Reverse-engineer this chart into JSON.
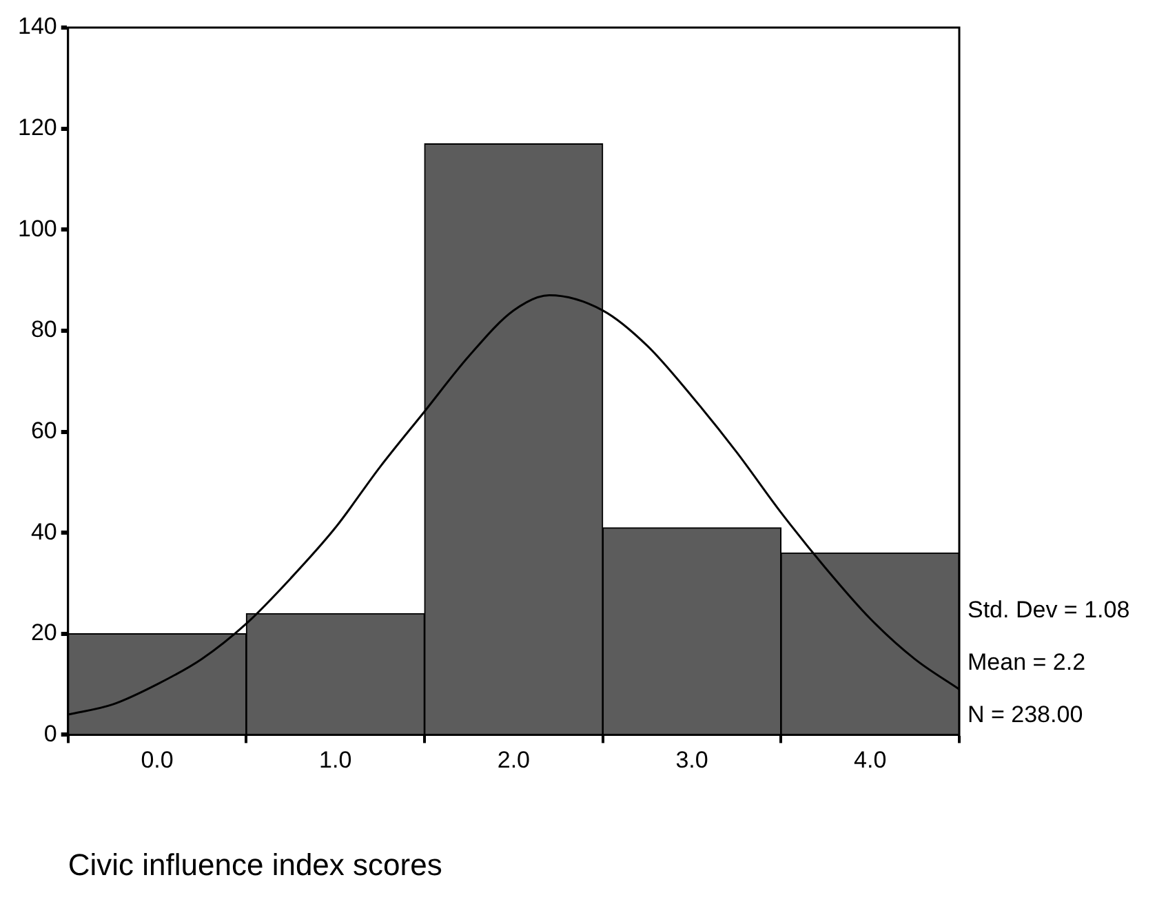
{
  "chart_data": {
    "type": "histogram",
    "xlabel": "Civic influence index scores",
    "bins": [
      -0.5,
      0.5,
      1.5,
      2.5,
      3.5,
      4.5
    ],
    "values": [
      20,
      24,
      117,
      41,
      36
    ],
    "color": "#5c5c5c",
    "series": [
      {
        "type": "line",
        "color": "#000000",
        "x": [
          -0.5,
          -0.25,
          0,
          0.25,
          0.5,
          0.75,
          1,
          1.25,
          1.5,
          1.75,
          2,
          2.2,
          2.5,
          2.75,
          3,
          3.25,
          3.5,
          3.75,
          4,
          4.25,
          4.5
        ],
        "values": [
          4,
          6,
          10,
          15,
          22,
          31,
          41,
          53,
          64,
          75,
          84,
          87,
          84,
          77,
          67,
          56,
          44,
          33,
          23,
          15,
          9
        ]
      }
    ],
    "xlim": [
      -0.5,
      4.5
    ],
    "xticks": [
      {
        "value": 0,
        "label": "0.0"
      },
      {
        "value": 1,
        "label": "1.0"
      },
      {
        "value": 2,
        "label": "2.0"
      },
      {
        "value": 3,
        "label": "3.0"
      },
      {
        "value": 4,
        "label": "4.0"
      }
    ],
    "ylim": [
      0,
      140
    ],
    "yticks": [
      0,
      20,
      40,
      60,
      80,
      100,
      120,
      140
    ],
    "grid": false,
    "legend": false,
    "marker": "none",
    "annotations": [
      "Std. Dev = 1.08",
      "Mean = 2.2",
      "N = 238.00"
    ]
  }
}
